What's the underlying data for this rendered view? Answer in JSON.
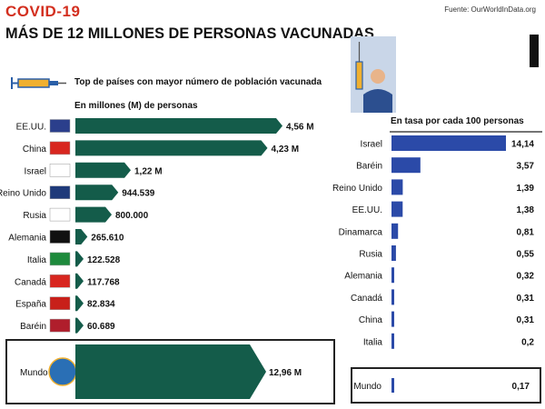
{
  "header": {
    "covid": "COVID-19",
    "title": "MÁS DE 12 MILLONES DE PERSONAS VACUNADAS",
    "source": "Fuente: OurWorldInData.org"
  },
  "chart_data": [
    {
      "type": "bar",
      "orientation": "horizontal",
      "title": "Top de países con mayor número de población vacunada",
      "subtitle": "En millones (M) de personas",
      "categories": [
        "EE.UU.",
        "China",
        "Israel",
        "Reino Unido",
        "Rusia",
        "Alemania",
        "Italia",
        "Canadá",
        "España",
        "Baréin"
      ],
      "values": [
        4.56,
        4.23,
        1.22,
        0.944539,
        0.8,
        0.26561,
        0.122528,
        0.117768,
        0.082834,
        0.060689
      ],
      "value_labels": [
        "4,56 M",
        "4,23 M",
        "1,22 M",
        "944.539",
        "800.000",
        "265.610",
        "122.528",
        "117.768",
        "82.834",
        "60.689"
      ],
      "world": {
        "label": "Mundo",
        "value": 12.96,
        "value_label": "12,96 M"
      },
      "bar_color": "#145c4a"
    },
    {
      "type": "bar",
      "orientation": "horizontal",
      "title": "En tasa por cada 100 personas",
      "categories": [
        "Israel",
        "Baréin",
        "Reino Unido",
        "EE.UU.",
        "Dinamarca",
        "Rusia",
        "Alemania",
        "Canadá",
        "China",
        "Italia"
      ],
      "values": [
        14.14,
        3.57,
        1.39,
        1.38,
        0.81,
        0.55,
        0.32,
        0.31,
        0.31,
        0.2
      ],
      "value_labels": [
        "14,14",
        "3,57",
        "1,39",
        "1,38",
        "0,81",
        "0,55",
        "0,32",
        "0,31",
        "0,31",
        "0,2"
      ],
      "world": {
        "label": "Mundo",
        "value": 0.17,
        "value_label": "0,17"
      },
      "bar_color": "#2b4aa8"
    }
  ]
}
